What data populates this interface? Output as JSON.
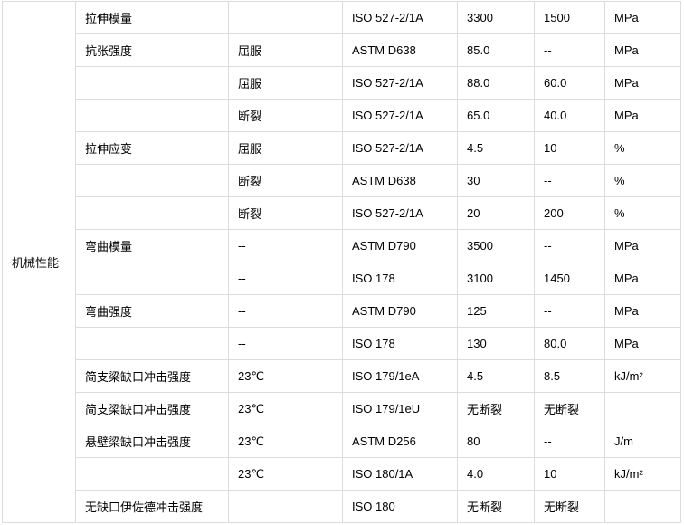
{
  "category": "机械性能",
  "rows": [
    [
      "拉伸模量",
      "",
      "ISO 527-2/1A",
      "3300",
      "1500",
      "MPa"
    ],
    [
      "抗张强度",
      "屈服",
      "ASTM D638",
      "85.0",
      "--",
      "MPa"
    ],
    [
      "",
      "屈服",
      "ISO 527-2/1A",
      "88.0",
      "60.0",
      "MPa"
    ],
    [
      "",
      "断裂",
      "ISO 527-2/1A",
      "65.0",
      "40.0",
      "MPa"
    ],
    [
      "拉伸应变",
      "屈服",
      "ISO 527-2/1A",
      "4.5",
      "10",
      "%"
    ],
    [
      "",
      "断裂",
      "ASTM D638",
      "30",
      "--",
      "%"
    ],
    [
      "",
      "断裂",
      "ISO 527-2/1A",
      "20",
      "200",
      "%"
    ],
    [
      "弯曲模量",
      "--",
      "ASTM D790",
      "3500",
      "--",
      "MPa"
    ],
    [
      "",
      "--",
      "ISO 178",
      "3100",
      "1450",
      "MPa"
    ],
    [
      "弯曲强度",
      "--",
      "ASTM D790",
      "125",
      "--",
      "MPa"
    ],
    [
      "",
      "--",
      "ISO 178",
      "130",
      "80.0",
      "MPa"
    ],
    [
      "简支梁缺口冲击强度",
      "23℃",
      "ISO 179/1eA",
      "4.5",
      "8.5",
      "kJ/m²"
    ],
    [
      "简支梁缺口冲击强度",
      "23℃",
      "ISO 179/1eU",
      "无断裂",
      "无断裂",
      ""
    ],
    [
      "悬壁梁缺口冲击强度",
      "23℃",
      "ASTM D256",
      "80",
      "--",
      "J/m"
    ],
    [
      "",
      "23℃",
      "ISO 180/1A",
      "4.0",
      "10",
      "kJ/m²"
    ],
    [
      "无缺口伊佐德冲击强度",
      "",
      "ISO 180",
      "无断裂",
      "无断裂",
      ""
    ]
  ]
}
